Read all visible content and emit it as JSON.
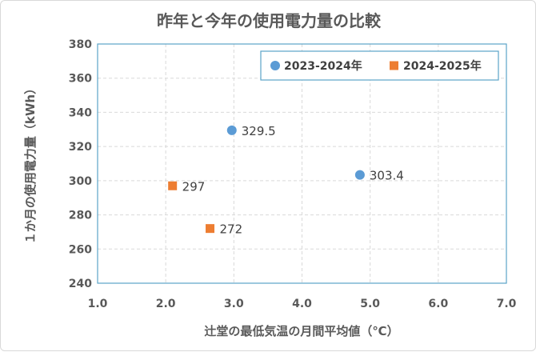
{
  "chart_data": {
    "type": "scatter",
    "title": "昨年と今年の使用電力量の比較",
    "xlabel": "辻堂の最低気温の月間平均値（℃）",
    "ylabel": "１か月の使用電力量（kWh）",
    "xlim": [
      1.0,
      7.0
    ],
    "ylim": [
      240,
      380
    ],
    "x_ticks": [
      "1.0",
      "2.0",
      "3.0",
      "4.0",
      "5.0",
      "6.0",
      "7.0"
    ],
    "y_ticks": [
      "240",
      "260",
      "280",
      "300",
      "320",
      "340",
      "360",
      "380"
    ],
    "grid": true,
    "legend_position": "top-right",
    "series": [
      {
        "name": "2023-2024年",
        "color": "#5b9bd5",
        "marker": "circle",
        "points": [
          {
            "x": 2.97,
            "y": 329.5,
            "label": "329.5"
          },
          {
            "x": 4.85,
            "y": 303.4,
            "label": "303.4"
          }
        ]
      },
      {
        "name": "2024-2025年",
        "color": "#ed7d31",
        "marker": "square",
        "points": [
          {
            "x": 2.1,
            "y": 297,
            "label": "297"
          },
          {
            "x": 2.65,
            "y": 272,
            "label": "272"
          }
        ]
      }
    ]
  }
}
